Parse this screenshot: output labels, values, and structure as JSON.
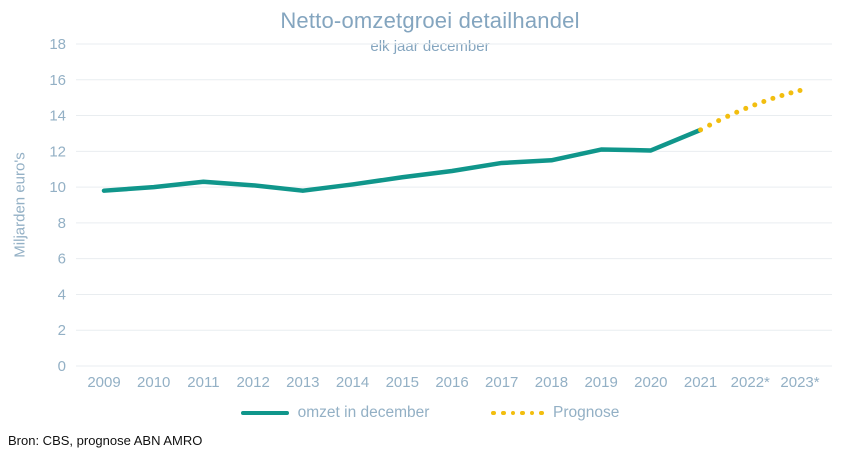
{
  "header": {
    "title": "Netto-omzetgroei detailhandel",
    "subtitle": "elk jaar december"
  },
  "y_axis_title": "Miljarden euro's",
  "legend": {
    "revenue_label": "omzet in december",
    "prognose_label": "Prognose"
  },
  "source": "Bron: CBS, prognose ABN AMRO",
  "colors": {
    "revenue_line": "#10968b",
    "prognose_dots": "#f2be0f",
    "axis_text": "#93b0c5",
    "title_text": "#84a5bf",
    "gridline": "#e9edf0",
    "source_text": "#111111"
  },
  "chart_data": {
    "type": "line",
    "title": "Netto-omzetgroei detailhandel",
    "subtitle": "elk jaar december",
    "xlabel": "",
    "ylabel": "Miljarden euro's",
    "ylim": [
      0,
      18
    ],
    "ytick_step": 2,
    "grid": true,
    "legend_position": "bottom",
    "categories": [
      "2009",
      "2010",
      "2011",
      "2012",
      "2013",
      "2014",
      "2015",
      "2016",
      "2017",
      "2018",
      "2019",
      "2020",
      "2021",
      "2022*",
      "2023*"
    ],
    "series": [
      {
        "name": "omzet in december",
        "style": "solid",
        "color": "#10968b",
        "values": [
          9.8,
          10.0,
          10.3,
          10.1,
          9.8,
          10.15,
          10.55,
          10.9,
          11.35,
          11.5,
          12.1,
          12.05,
          13.2,
          null,
          null
        ]
      },
      {
        "name": "Prognose",
        "style": "dotted",
        "color": "#f2be0f",
        "values": [
          null,
          null,
          null,
          null,
          null,
          null,
          null,
          null,
          null,
          null,
          null,
          null,
          13.2,
          14.5,
          15.4
        ]
      }
    ]
  }
}
